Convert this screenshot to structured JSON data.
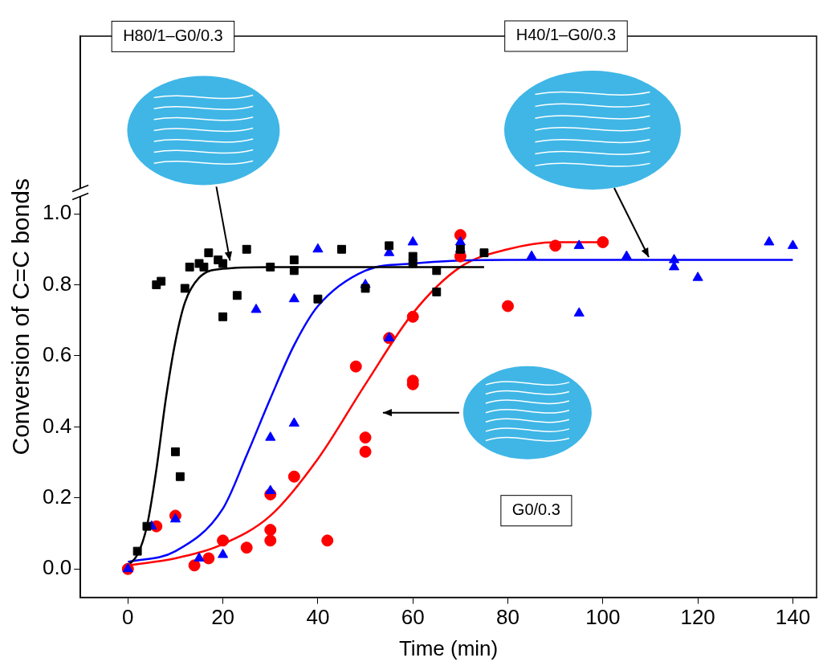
{
  "chart_data": {
    "type": "scatter",
    "x_label": "Time (min)",
    "y_label": "Conversion of C=C bonds",
    "xlim": [
      -10,
      145
    ],
    "xticks": [
      0,
      20,
      40,
      60,
      80,
      100,
      120,
      140
    ],
    "ylim": [
      -0.08,
      1.5
    ],
    "yticks": [
      {
        "value": 0,
        "label": "0.0"
      },
      {
        "value": 0.2,
        "label": "0.2"
      },
      {
        "value": 0.4,
        "label": "0.4"
      },
      {
        "value": 0.6,
        "label": "0.6"
      },
      {
        "value": 0.8,
        "label": "0.8"
      },
      {
        "value": 1.0,
        "label": "1.0"
      }
    ],
    "grid": false,
    "annotations": [
      {
        "text": "H80/1–G0/0.3",
        "x": 22,
        "y": 0.85
      },
      {
        "text": "H40/1–G0/0.3",
        "x": 110,
        "y": 0.86
      },
      {
        "text": "G0/0.3",
        "x": 52,
        "y": 0.44
      }
    ],
    "series": [
      {
        "type": "scatter",
        "color": "#000000",
        "marker": "square",
        "x": [
          2,
          4,
          6,
          7,
          10,
          11,
          12,
          13,
          15,
          16,
          17,
          19,
          20,
          20,
          23,
          25,
          30,
          35,
          35,
          40,
          45,
          50,
          55,
          60,
          60,
          65,
          65,
          70,
          75
        ],
        "values": [
          0.05,
          0.12,
          0.8,
          0.81,
          0.33,
          0.26,
          0.79,
          0.85,
          0.86,
          0.85,
          0.89,
          0.87,
          0.86,
          0.71,
          0.77,
          0.9,
          0.85,
          0.87,
          0.84,
          0.76,
          0.9,
          0.79,
          0.91,
          0.88,
          0.86,
          0.78,
          0.84,
          0.9,
          0.89
        ]
      },
      {
        "type": "scatter",
        "color": "#0000ff",
        "marker": "triangle",
        "x": [
          0,
          5,
          10,
          15,
          20,
          27,
          30,
          30,
          35,
          35,
          40,
          50,
          55,
          55,
          60,
          70,
          70,
          85,
          95,
          95,
          105,
          115,
          115,
          120,
          135,
          140
        ],
        "values": [
          0,
          0.12,
          0.14,
          0.03,
          0.04,
          0.73,
          0.22,
          0.37,
          0.41,
          0.76,
          0.9,
          0.8,
          0.65,
          0.89,
          0.92,
          0.92,
          0.9,
          0.88,
          0.91,
          0.72,
          0.88,
          0.87,
          0.85,
          0.82,
          0.92,
          0.91
        ]
      },
      {
        "type": "scatter",
        "color": "#ff0000",
        "marker": "circle",
        "x": [
          0,
          6,
          10,
          14,
          17,
          20,
          25,
          30,
          30,
          30,
          35,
          42,
          48,
          50,
          50,
          55,
          60,
          60,
          60,
          70,
          70,
          80,
          90,
          100
        ],
        "values": [
          0,
          0.12,
          0.15,
          0.01,
          0.03,
          0.08,
          0.06,
          0.11,
          0.08,
          0.21,
          0.26,
          0.08,
          0.57,
          0.37,
          0.33,
          0.65,
          0.71,
          0.53,
          0.52,
          0.94,
          0.88,
          0.74,
          0.91,
          0.92
        ]
      },
      {
        "type": "line",
        "color": "#000000",
        "line_style": "solid",
        "x": [
          0,
          2,
          4,
          6,
          8,
          10,
          12,
          15,
          20,
          30,
          75
        ],
        "values": [
          0.01,
          0.04,
          0.12,
          0.28,
          0.48,
          0.64,
          0.75,
          0.82,
          0.845,
          0.85,
          0.85
        ]
      },
      {
        "type": "line",
        "color": "#0000ff",
        "line_style": "solid",
        "x": [
          0,
          10,
          20,
          25,
          30,
          35,
          40,
          50,
          60,
          80,
          140
        ],
        "values": [
          0.02,
          0.05,
          0.17,
          0.32,
          0.48,
          0.63,
          0.74,
          0.84,
          0.86,
          0.87,
          0.87
        ]
      },
      {
        "type": "line",
        "color": "#ff0000",
        "line_style": "solid",
        "x": [
          0,
          10,
          20,
          30,
          40,
          50,
          60,
          70,
          80,
          90,
          100
        ],
        "values": [
          0.01,
          0.03,
          0.07,
          0.15,
          0.31,
          0.52,
          0.72,
          0.85,
          0.9,
          0.92,
          0.92
        ]
      }
    ]
  }
}
